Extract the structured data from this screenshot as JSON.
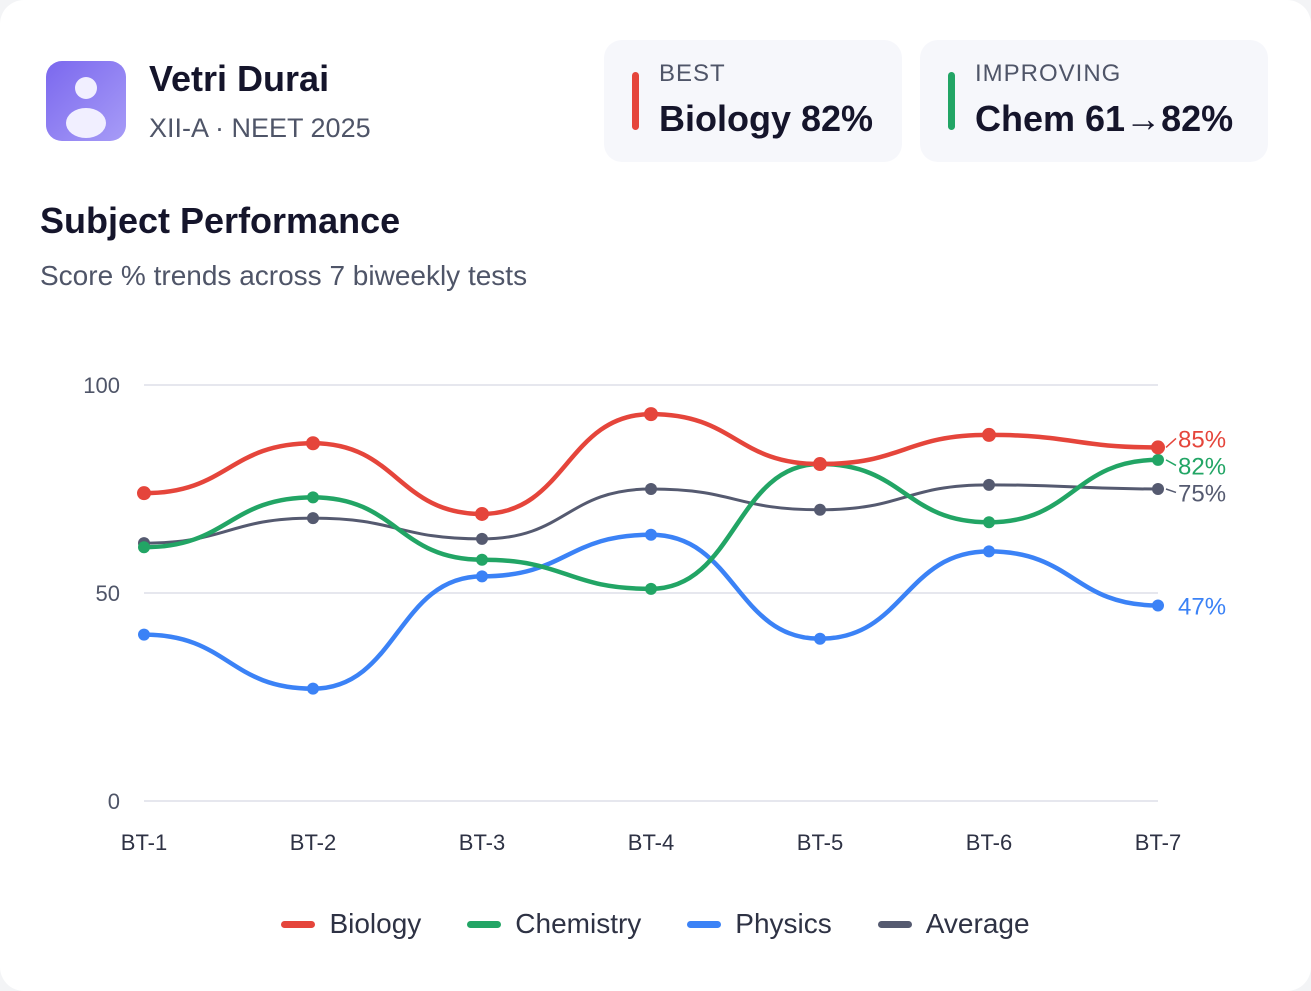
{
  "student": {
    "name": "Vetri Durai",
    "subtitle": "XII-A · NEET 2025",
    "avatar_icon": "user-icon"
  },
  "stats": [
    {
      "label": "BEST",
      "value": "Biology 82%",
      "color": "#e5453b"
    },
    {
      "label": "IMPROVING",
      "value": "Chem 61→82%",
      "color": "#22a565"
    }
  ],
  "section": {
    "title": "Subject Performance",
    "description": "Score % trends across 7 biweekly tests"
  },
  "chart_data": {
    "type": "line",
    "categories": [
      "BT-1",
      "BT-2",
      "BT-3",
      "BT-4",
      "BT-5",
      "BT-6",
      "BT-7"
    ],
    "ylim": [
      0,
      100
    ],
    "yticks": [
      "0",
      "50",
      "100"
    ],
    "grid": true,
    "legend": "bottom",
    "series": [
      {
        "name": "Biology",
        "color": "#e5453b",
        "values": [
          74,
          86,
          69,
          93,
          81,
          88,
          85
        ],
        "end_label": "85%"
      },
      {
        "name": "Chemistry",
        "color": "#22a565",
        "values": [
          61,
          73,
          58,
          51,
          81,
          67,
          82
        ],
        "end_label": "82%"
      },
      {
        "name": "Physics",
        "color": "#3b82f6",
        "values": [
          40,
          27,
          54,
          64,
          39,
          60,
          47
        ],
        "end_label": "47%"
      },
      {
        "name": "Average",
        "color": "#555a70",
        "values": [
          62,
          68,
          63,
          75,
          70,
          76,
          75
        ],
        "end_label": "75%"
      }
    ]
  }
}
